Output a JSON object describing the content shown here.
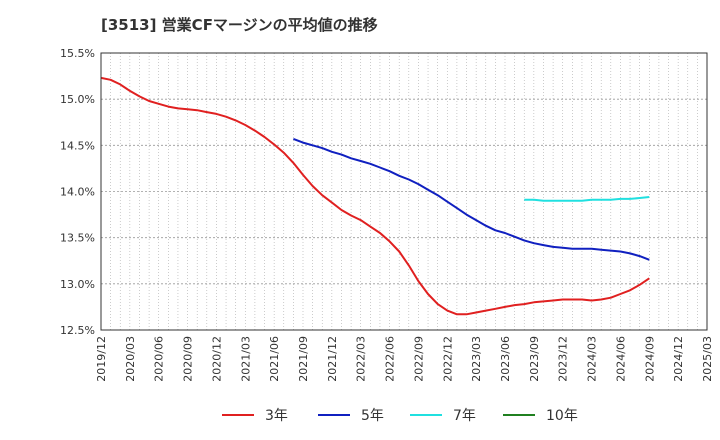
{
  "chart_data": {
    "type": "line",
    "title": "[3513]  営業CFマージンの平均値の推移",
    "xlabel": "",
    "ylabel": "",
    "ylim": [
      12.5,
      15.5
    ],
    "yticks": [
      "12.5%",
      "13.0%",
      "13.5%",
      "14.0%",
      "14.5%",
      "15.0%",
      "15.5%"
    ],
    "xticks": [
      "2019/12",
      "2020/03",
      "2020/06",
      "2020/09",
      "2020/12",
      "2021/03",
      "2021/06",
      "2021/09",
      "2021/12",
      "2022/03",
      "2022/06",
      "2022/09",
      "2022/12",
      "2023/03",
      "2023/06",
      "2023/09",
      "2023/12",
      "2024/03",
      "2024/06",
      "2024/09",
      "2024/12",
      "2025/03"
    ],
    "grid": true,
    "legend_position": "bottom",
    "series": [
      {
        "name": "3年",
        "color": "#e02020",
        "x": [
          "2019/12",
          "2020/01",
          "2020/02",
          "2020/03",
          "2020/04",
          "2020/05",
          "2020/06",
          "2020/07",
          "2020/08",
          "2020/09",
          "2020/10",
          "2020/11",
          "2020/12",
          "2021/01",
          "2021/02",
          "2021/03",
          "2021/04",
          "2021/05",
          "2021/06",
          "2021/07",
          "2021/08",
          "2021/09",
          "2021/10",
          "2021/11",
          "2021/12",
          "2022/01",
          "2022/02",
          "2022/03",
          "2022/04",
          "2022/05",
          "2022/06",
          "2022/07",
          "2022/08",
          "2022/09",
          "2022/10",
          "2022/11",
          "2022/12",
          "2023/01",
          "2023/02",
          "2023/03",
          "2023/04",
          "2023/05",
          "2023/06",
          "2023/07",
          "2023/08",
          "2023/09",
          "2023/10",
          "2023/11",
          "2023/12",
          "2024/01",
          "2024/02",
          "2024/03",
          "2024/04",
          "2024/05",
          "2024/06",
          "2024/07",
          "2024/08",
          "2024/09"
        ],
        "values": [
          15.23,
          15.21,
          15.16,
          15.09,
          15.03,
          14.98,
          14.95,
          14.92,
          14.9,
          14.89,
          14.88,
          14.86,
          14.84,
          14.81,
          14.77,
          14.72,
          14.66,
          14.59,
          14.51,
          14.42,
          14.31,
          14.18,
          14.06,
          13.96,
          13.88,
          13.8,
          13.74,
          13.69,
          13.62,
          13.55,
          13.46,
          13.35,
          13.2,
          13.03,
          12.89,
          12.78,
          12.71,
          12.67,
          12.67,
          12.69,
          12.71,
          12.73,
          12.75,
          12.77,
          12.78,
          12.8,
          12.81,
          12.82,
          12.83,
          12.83,
          12.83,
          12.82,
          12.83,
          12.85,
          12.89,
          12.93,
          12.99,
          13.06
        ]
      },
      {
        "name": "5年",
        "color": "#1020c0",
        "x": [
          "2021/08",
          "2021/09",
          "2021/10",
          "2021/11",
          "2021/12",
          "2022/01",
          "2022/02",
          "2022/03",
          "2022/04",
          "2022/05",
          "2022/06",
          "2022/07",
          "2022/08",
          "2022/09",
          "2022/10",
          "2022/11",
          "2022/12",
          "2023/01",
          "2023/02",
          "2023/03",
          "2023/04",
          "2023/05",
          "2023/06",
          "2023/07",
          "2023/08",
          "2023/09",
          "2023/10",
          "2023/11",
          "2023/12",
          "2024/01",
          "2024/02",
          "2024/03",
          "2024/04",
          "2024/05",
          "2024/06",
          "2024/07",
          "2024/08",
          "2024/09"
        ],
        "values": [
          14.57,
          14.53,
          14.5,
          14.47,
          14.43,
          14.4,
          14.36,
          14.33,
          14.3,
          14.26,
          14.22,
          14.17,
          14.13,
          14.08,
          14.02,
          13.96,
          13.89,
          13.82,
          13.75,
          13.69,
          13.63,
          13.58,
          13.55,
          13.51,
          13.47,
          13.44,
          13.42,
          13.4,
          13.39,
          13.38,
          13.38,
          13.38,
          13.37,
          13.36,
          13.35,
          13.33,
          13.3,
          13.26
        ]
      },
      {
        "name": "7年",
        "color": "#20e0e0",
        "x": [
          "2023/08",
          "2023/09",
          "2023/10",
          "2023/11",
          "2023/12",
          "2024/01",
          "2024/02",
          "2024/03",
          "2024/04",
          "2024/05",
          "2024/06",
          "2024/07",
          "2024/08",
          "2024/09"
        ],
        "values": [
          13.91,
          13.91,
          13.9,
          13.9,
          13.9,
          13.9,
          13.9,
          13.91,
          13.91,
          13.91,
          13.92,
          13.92,
          13.93,
          13.94
        ]
      },
      {
        "name": "10年",
        "color": "#208020",
        "x": [],
        "values": []
      }
    ]
  }
}
